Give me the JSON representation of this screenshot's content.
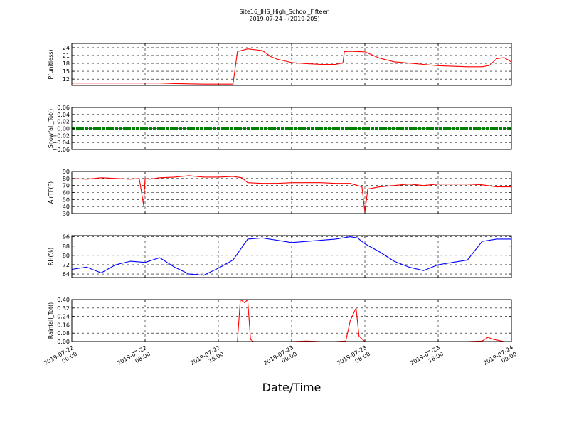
{
  "figure": {
    "title_line1": "Site16_JHS_High_School_Fifteen",
    "title_line2": "2019-07-24 - (2019-205)",
    "xlabel": "Date/Time"
  },
  "chart_data": [
    {
      "type": "line",
      "ylabel": "P(unitless)",
      "yticks": [
        12,
        15,
        18,
        21,
        24
      ],
      "ylim": [
        9.6,
        25.6
      ],
      "color": "#ff0000",
      "grid": true,
      "series": [
        {
          "x": [
            0,
            1,
            2,
            3,
            4,
            5,
            6,
            7,
            8,
            9,
            10,
            11,
            11.3,
            12,
            13,
            13.6,
            14,
            15,
            16,
            17,
            18,
            18.5,
            18.6,
            19,
            20,
            21,
            22,
            23,
            24,
            25,
            26,
            27,
            28,
            28.5,
            29,
            29.5,
            30
          ],
          "values": [
            10.5,
            10.5,
            10.5,
            10.5,
            10.5,
            10.5,
            10.5,
            10.3,
            10.2,
            10.1,
            10.1,
            10.1,
            22.5,
            23.5,
            22.9,
            20.5,
            19.6,
            18.3,
            17.9,
            17.6,
            17.6,
            18.2,
            22.5,
            22.6,
            22.4,
            20.0,
            18.6,
            18.1,
            17.6,
            17.1,
            16.9,
            16.7,
            16.7,
            17.2,
            19.8,
            20.2,
            18.5
          ]
        }
      ]
    },
    {
      "type": "line",
      "ylabel": "Snowfall_Tot()",
      "yticks": [
        -0.06,
        -0.04,
        -0.02,
        0.0,
        0.02,
        0.04,
        0.06
      ],
      "ylim": [
        -0.06,
        0.06
      ],
      "color": "#008000",
      "grid": true,
      "series": [
        {
          "x": [
            0,
            30
          ],
          "values": [
            0,
            0
          ]
        }
      ]
    },
    {
      "type": "line",
      "ylabel": "AirTF(F)",
      "yticks": [
        30,
        40,
        50,
        60,
        70,
        80,
        90
      ],
      "ylim": [
        30,
        90
      ],
      "color": "#ff0000",
      "grid": true,
      "series": [
        {
          "x": [
            0,
            1,
            2,
            3,
            4,
            4.6,
            4.9,
            5,
            5.3,
            6,
            7,
            8,
            9,
            10,
            11,
            11.6,
            12,
            13,
            14,
            15,
            16,
            17,
            18,
            19,
            19.5,
            19.8,
            20,
            20.2,
            21,
            22,
            23,
            24,
            25,
            26,
            27,
            28,
            29,
            30
          ],
          "values": [
            80,
            79,
            81,
            80,
            79,
            80,
            42,
            80,
            79,
            81,
            82,
            84,
            82,
            82,
            83,
            81,
            74,
            73,
            73,
            74,
            74,
            74,
            73,
            73,
            70,
            68,
            32,
            65,
            68,
            70,
            72,
            70,
            72,
            72,
            72,
            71,
            68,
            68
          ]
        }
      ]
    },
    {
      "type": "line",
      "ylabel": "RH(%)",
      "yticks": [
        64,
        72,
        80,
        88,
        96
      ],
      "ylim": [
        61,
        97
      ],
      "color": "#0000ff",
      "grid": true,
      "series": [
        {
          "x": [
            0,
            1,
            2,
            3,
            4,
            5,
            6,
            7,
            8,
            9,
            10,
            11,
            12,
            13,
            14,
            15,
            16,
            17,
            18,
            19,
            19.5,
            20,
            21,
            22,
            23,
            24,
            25,
            26,
            27,
            28,
            29,
            30
          ],
          "values": [
            68,
            70,
            65,
            72,
            75,
            74,
            78,
            70,
            64,
            63,
            69,
            76,
            94,
            95,
            93,
            91,
            92,
            93,
            94,
            96,
            95,
            90,
            83,
            75,
            70,
            67,
            72,
            74,
            76,
            92,
            94,
            94
          ]
        }
      ]
    },
    {
      "type": "line",
      "ylabel": "Rainfall_Tot()",
      "yticks": [
        0.0,
        0.08,
        0.16,
        0.24,
        0.32,
        0.4
      ],
      "ylim": [
        0,
        0.4
      ],
      "color": "#ff0000",
      "grid": true,
      "series": [
        {
          "x": [
            0,
            11.3,
            11.5,
            11.8,
            12,
            12.2,
            12.4,
            13,
            14,
            15,
            16,
            17,
            18,
            18.7,
            19,
            19.4,
            19.6,
            20,
            21,
            22,
            23,
            24,
            25,
            26,
            27,
            28,
            28.4,
            28.8,
            29.5,
            30
          ],
          "values": [
            0,
            0,
            0.4,
            0.37,
            0.4,
            0.02,
            0.0,
            0,
            0,
            0,
            0.005,
            0,
            0,
            0.005,
            0.2,
            0.32,
            0.05,
            0,
            0,
            0,
            0,
            0,
            0,
            0,
            0,
            0.005,
            0.04,
            0.02,
            0,
            0
          ]
        }
      ]
    }
  ],
  "xaxis": {
    "range": [
      0,
      30
    ],
    "ticks": [
      {
        "x": 0,
        "line1": "2019-07-22",
        "line2": "00:00"
      },
      {
        "x": 5,
        "line1": "2019-07-22",
        "line2": "08:00"
      },
      {
        "x": 10,
        "line1": "2019-07-22",
        "line2": "16:00"
      },
      {
        "x": 15,
        "line1": "2019-07-23",
        "line2": "00:00"
      },
      {
        "x": 20,
        "line1": "2019-07-23",
        "line2": "08:00"
      },
      {
        "x": 25,
        "line1": "2019-07-23",
        "line2": "16:00"
      },
      {
        "x": 30,
        "line1": "2019-07-24",
        "line2": "00:00"
      }
    ]
  }
}
